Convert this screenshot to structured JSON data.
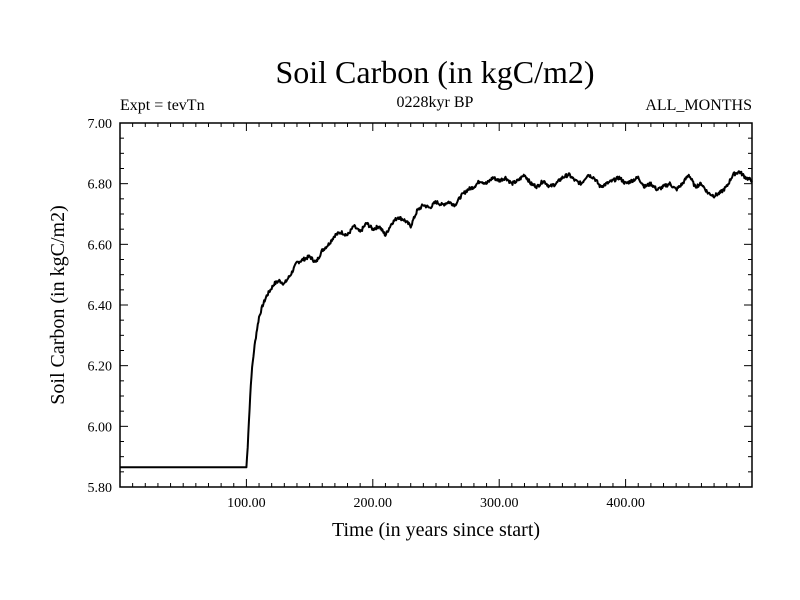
{
  "header": {
    "title": "Soil Carbon (in kgC/m2)",
    "left_label": "Expt = tevTn",
    "center_label": "0228kyr BP",
    "right_label": "ALL_MONTHS"
  },
  "chart_data": {
    "type": "line",
    "title": "Soil Carbon (in kgC/m2)",
    "xlabel": "Time (in years since start)",
    "ylabel": "Soil Carbon (in kgC/m2)",
    "xlim": [
      0,
      500
    ],
    "ylim": [
      5.8,
      7.0
    ],
    "x_ticks": [
      100,
      200,
      300,
      400
    ],
    "x_tick_labels": [
      "100.00",
      "200.00",
      "300.00",
      "400.00"
    ],
    "y_ticks": [
      5.8,
      6.0,
      6.2,
      6.4,
      6.6,
      6.8,
      7.0
    ],
    "y_tick_labels": [
      "5.80",
      "6.00",
      "6.20",
      "6.40",
      "6.60",
      "6.80",
      "7.00"
    ],
    "grid": false,
    "series": [
      {
        "name": "Soil Carbon",
        "color": "#000000",
        "x": [
          0,
          100,
          101,
          102,
          103,
          104,
          106,
          108,
          110,
          113,
          116,
          119,
          122,
          126,
          130,
          135,
          140,
          145,
          150,
          155,
          160,
          165,
          170,
          175,
          180,
          185,
          190,
          195,
          200,
          205,
          210,
          215,
          220,
          225,
          230,
          235,
          240,
          245,
          250,
          255,
          260,
          265,
          270,
          275,
          280,
          285,
          290,
          295,
          300,
          305,
          310,
          315,
          320,
          325,
          330,
          335,
          340,
          345,
          350,
          355,
          360,
          365,
          370,
          375,
          380,
          385,
          390,
          395,
          400,
          405,
          410,
          415,
          420,
          425,
          430,
          435,
          440,
          445,
          450,
          455,
          460,
          465,
          470,
          475,
          480,
          485,
          490,
          495,
          500
        ],
        "values": [
          5.865,
          5.865,
          5.93,
          6.02,
          6.1,
          6.17,
          6.25,
          6.31,
          6.36,
          6.4,
          6.43,
          6.45,
          6.47,
          6.48,
          6.47,
          6.5,
          6.54,
          6.55,
          6.56,
          6.54,
          6.58,
          6.6,
          6.63,
          6.64,
          6.63,
          6.66,
          6.64,
          6.67,
          6.65,
          6.66,
          6.63,
          6.67,
          6.69,
          6.68,
          6.66,
          6.71,
          6.73,
          6.72,
          6.74,
          6.73,
          6.74,
          6.73,
          6.76,
          6.78,
          6.79,
          6.81,
          6.8,
          6.82,
          6.81,
          6.82,
          6.8,
          6.81,
          6.83,
          6.8,
          6.79,
          6.81,
          6.79,
          6.8,
          6.82,
          6.83,
          6.81,
          6.8,
          6.83,
          6.82,
          6.79,
          6.8,
          6.81,
          6.82,
          6.8,
          6.81,
          6.82,
          6.79,
          6.8,
          6.78,
          6.79,
          6.8,
          6.78,
          6.8,
          6.83,
          6.79,
          6.8,
          6.77,
          6.76,
          6.77,
          6.79,
          6.83,
          6.84,
          6.82,
          6.81
        ]
      }
    ]
  }
}
